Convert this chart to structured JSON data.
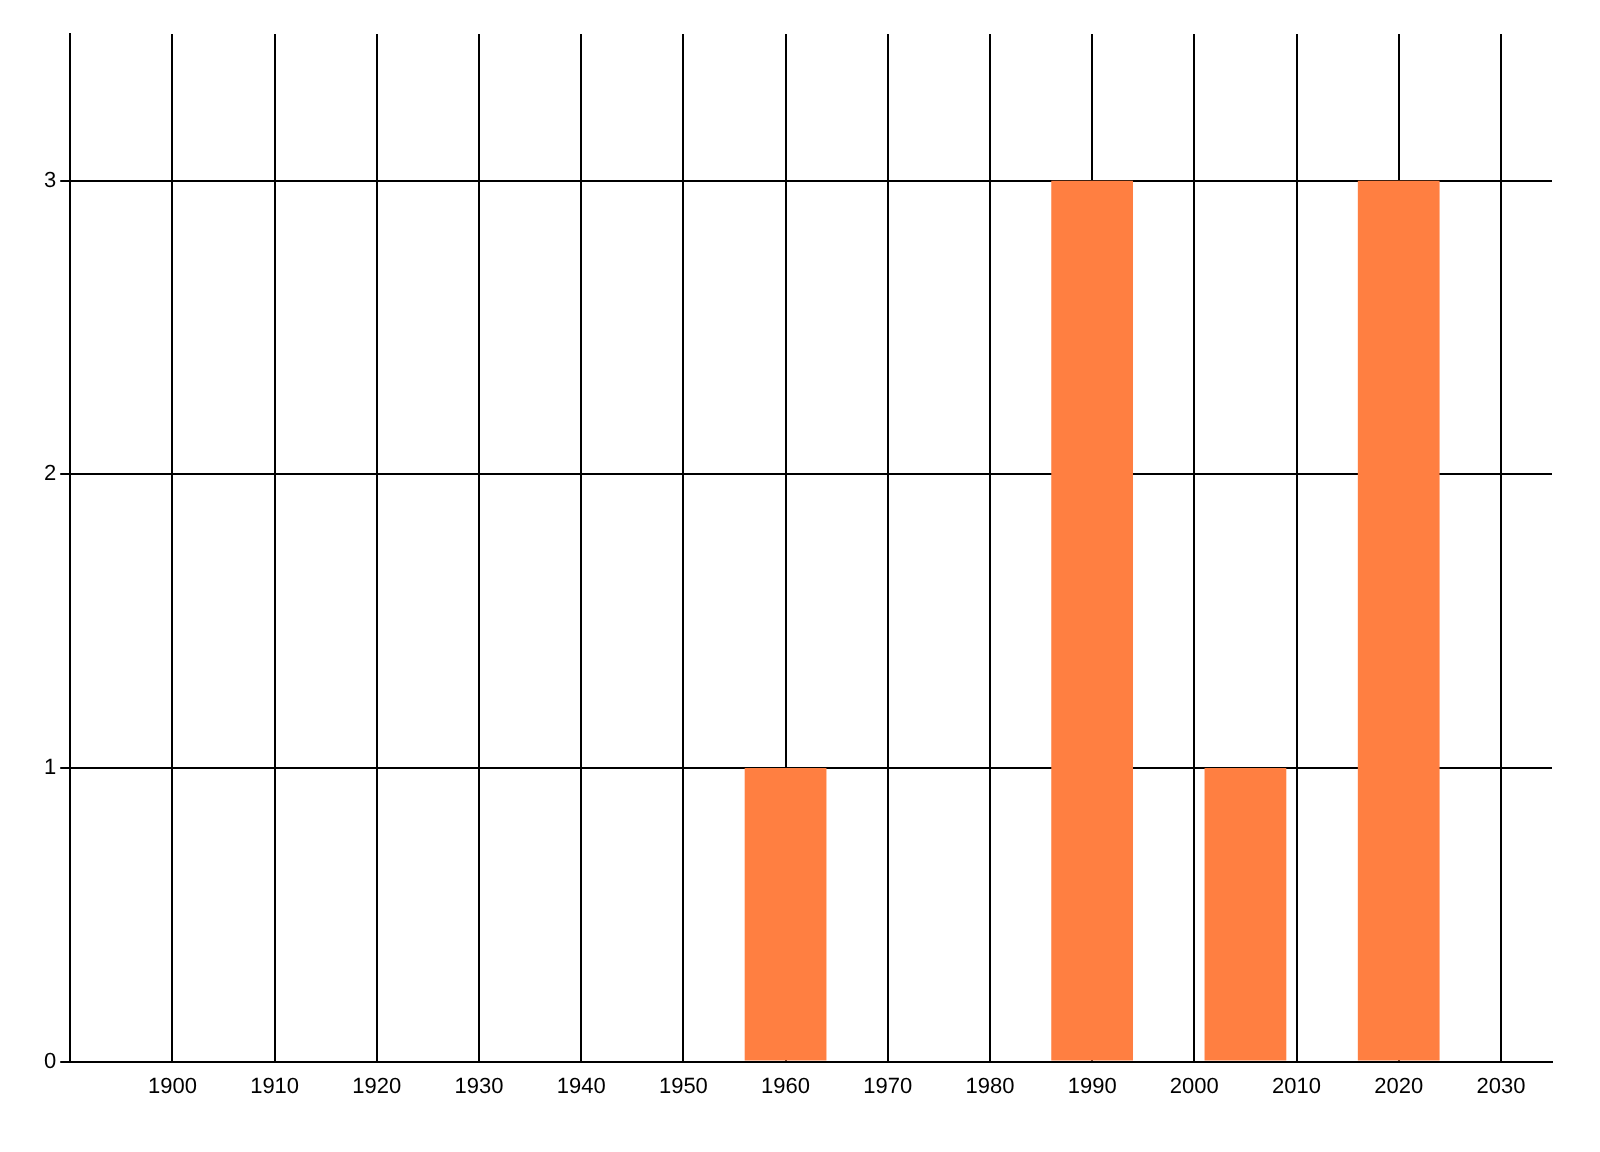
{
  "chart_data": {
    "type": "bar",
    "x": [
      1960,
      1990,
      2005,
      2020
    ],
    "values": [
      1,
      3,
      1,
      3
    ],
    "color": "#ff7f41",
    "xlim": [
      1890,
      2035
    ],
    "xticks": [
      1900,
      1910,
      1920,
      1930,
      1940,
      1950,
      1960,
      1970,
      1980,
      1990,
      2000,
      2010,
      2020,
      2030
    ],
    "ylim": [
      0,
      3.5
    ],
    "yticks": [
      0,
      1,
      2,
      3
    ],
    "grid": true
  }
}
